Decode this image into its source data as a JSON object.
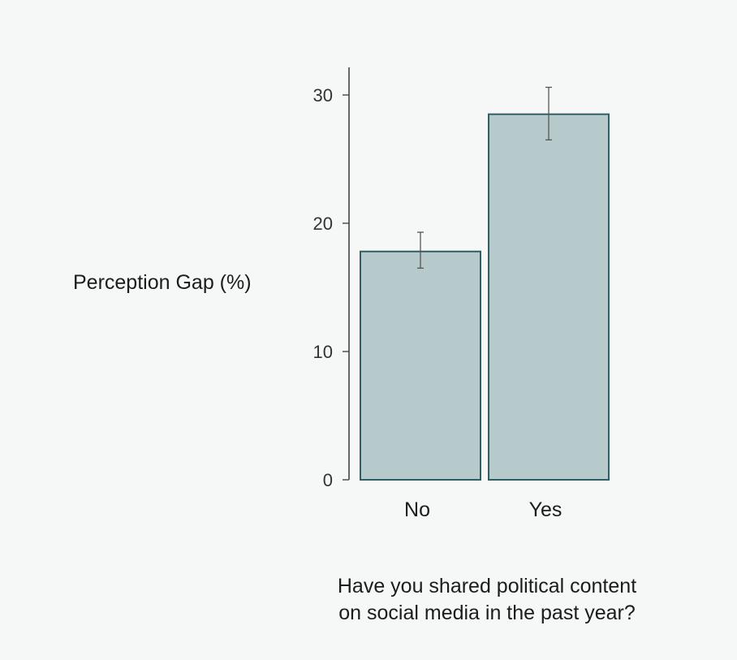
{
  "chart_data": {
    "type": "bar",
    "title": "",
    "ylabel": "Perception Gap (%)",
    "xlabel_lines": [
      "Have you shared political content",
      "on social media in the past year?"
    ],
    "categories": [
      "No",
      "Yes"
    ],
    "values": [
      17.8,
      28.5
    ],
    "error_bars": {
      "lower": [
        16.5,
        26.5
      ],
      "upper": [
        19.3,
        30.6
      ]
    },
    "ylim": [
      0,
      32
    ],
    "yticks": [
      0,
      10,
      20,
      30
    ],
    "grid": false,
    "legend": "none",
    "colors": {
      "bar_fill": "#b7cacb",
      "bar_stroke": "#2f5f63",
      "axis": "#444444",
      "error_bar": "#555555",
      "tick_text": "#333333",
      "background": "#f6f8f7"
    }
  }
}
